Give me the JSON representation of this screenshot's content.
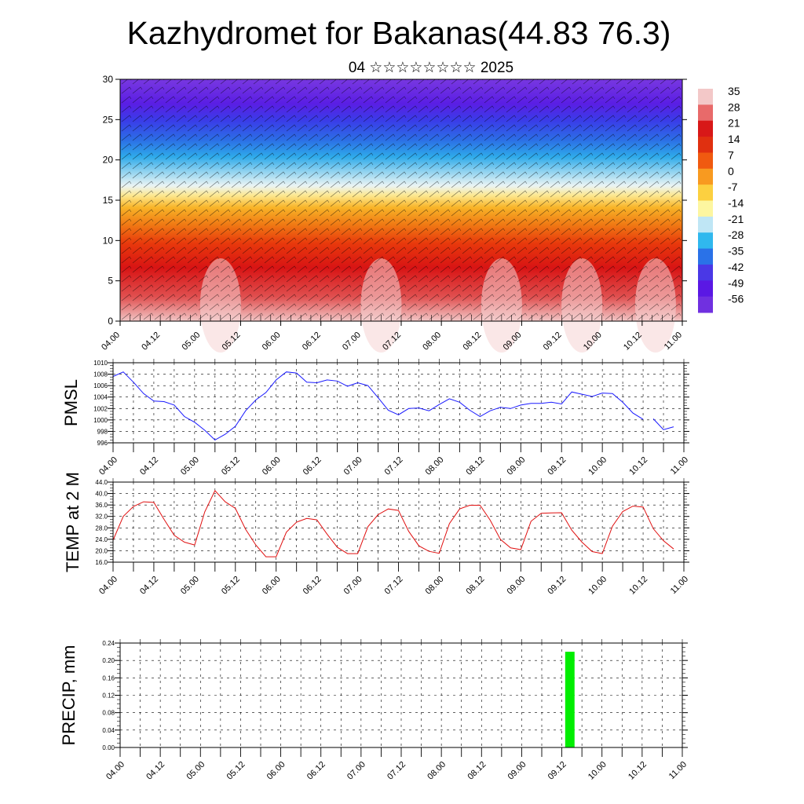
{
  "title": "Kazhydromet for Bakanas(44.83 76.3)",
  "subtitle": "04 ☆☆☆☆☆☆☆☆ 2025",
  "time_labels": [
    "04.00",
    "04.12",
    "05.00",
    "05.12",
    "06.00",
    "06.12",
    "07.00",
    "07.12",
    "08.00",
    "08.12",
    "09.00",
    "09.12",
    "10.00",
    "10.12",
    "11.00"
  ],
  "colors": {
    "pmsl_line": "#1a1aff",
    "temp_line": "#e01010",
    "precip_bar": "#00ee00",
    "grid": "#000000"
  },
  "chart_data": [
    {
      "type": "heatmap",
      "title": "",
      "ylim": [
        0,
        30
      ],
      "yticks": [
        "0",
        "5",
        "10",
        "15",
        "20",
        "25",
        "30"
      ],
      "colorbar": {
        "labels": [
          "35",
          "28",
          "21",
          "14",
          "7",
          "0",
          "-7",
          "-14",
          "-21",
          "-28",
          "-35",
          "-42",
          "-49",
          "-56"
        ],
        "colors": [
          "#f3c8c8",
          "#e86a6a",
          "#d81818",
          "#e03010",
          "#f05a10",
          "#f89a20",
          "#fcd040",
          "#fdf6a0",
          "#bfe6f5",
          "#30b8ee",
          "#2a72e8",
          "#4a38e6",
          "#5a18e4",
          "#7030e0"
        ]
      },
      "x_range": [
        0,
        84
      ],
      "temperature_profile": "warm near surface (~25 to 40), decreasing with height to about -56 near 30",
      "wind_barbs": "overlay"
    },
    {
      "type": "line",
      "ylabel": "PMSL",
      "ylim": [
        996,
        1010
      ],
      "yticks": [
        "996",
        "998",
        "1000",
        "1002",
        "1004",
        "1006",
        "1008",
        "1010"
      ],
      "x_range": [
        0,
        84
      ],
      "series": [
        {
          "x": [
            0,
            1.5,
            3,
            4.5,
            6,
            7.5,
            9,
            10.5,
            12,
            13.5,
            15,
            16.5,
            18,
            19.5,
            21,
            22.5,
            24,
            25.5,
            27,
            28.5,
            30,
            31.5,
            33,
            34.5,
            36,
            37.5,
            39,
            40.5,
            42,
            43.5,
            45,
            46.5,
            48,
            49.5,
            51,
            52.5,
            54,
            55.5,
            57,
            58.5,
            60,
            61.5,
            63,
            64.5,
            66,
            67.5,
            69,
            70.5,
            72,
            73.5,
            75,
            76.5,
            78
          ],
          "values": [
            1007.6,
            1008.4,
            1006.6,
            1004.6,
            1003.3,
            1003.2,
            1002.6,
            1000.6,
            999.6,
            998.2,
            996.5,
            997.5,
            998.9,
            1001.6,
            1003.5,
            1004.8,
            1007.0,
            1008.4,
            1008.2,
            1006.6,
            1006.5,
            1007.0,
            1006.8,
            1005.9,
            1006.5,
            1006.0,
            1003.9,
            1001.7,
            1000.9,
            1002.0,
            1002.1,
            1001.6,
            1002.7,
            1003.7,
            1003.1,
            1001.7,
            1000.6,
            1001.6,
            1002.2,
            1002.0,
            1002.6,
            1002.9,
            1002.9,
            1003.1,
            1002.8,
            1004.9,
            1004.5,
            1004.1,
            1004.7,
            1004.6,
            1003.1,
            1001.2,
            1000.1
          ]
        },
        {
          "x": [
            79.5,
            81,
            82.5
          ],
          "values": [
            1000.2,
            998.3,
            998.8
          ]
        }
      ]
    },
    {
      "type": "line",
      "ylabel": "TEMP at 2 M",
      "ylim": [
        16,
        44
      ],
      "yticks": [
        "16.0",
        "20.0",
        "24.0",
        "28.0",
        "32.0",
        "36.0",
        "40.0",
        "44.0"
      ],
      "x_range": [
        0,
        84
      ],
      "series": [
        {
          "x": [
            0,
            1.5,
            3,
            4.5,
            6,
            7.5,
            9,
            10.5,
            12,
            13.5,
            15,
            16.5,
            18,
            19.5,
            21,
            22.5,
            24,
            25.5,
            27,
            28.5,
            30,
            31.5,
            33,
            34.5,
            36,
            37.5,
            39,
            40.5,
            42,
            43.5,
            45,
            46.5,
            48,
            49.5,
            51,
            52.5,
            54,
            55.5,
            57,
            58.5,
            60,
            61.5,
            63,
            64.5,
            66,
            67.5,
            69,
            70.5,
            72,
            73.5,
            75,
            76.5,
            78,
            79.5,
            81,
            82.5
          ],
          "values": [
            23.7,
            32.0,
            35.5,
            37.1,
            36.9,
            31.0,
            25.4,
            23.0,
            22.0,
            33.6,
            41.0,
            37.1,
            34.8,
            27.5,
            22.0,
            17.9,
            17.9,
            26.5,
            30.0,
            31.3,
            30.8,
            25.8,
            21.2,
            19.0,
            19.0,
            28.4,
            32.6,
            34.6,
            34.1,
            26.8,
            21.7,
            19.8,
            19.1,
            29.5,
            34.6,
            35.9,
            35.9,
            30.7,
            24.0,
            21.0,
            20.4,
            30.3,
            33.1,
            33.2,
            33.3,
            27.2,
            23.0,
            19.7,
            19.0,
            28.6,
            33.7,
            35.6,
            35.3,
            27.7,
            23.5,
            20.6
          ]
        }
      ]
    },
    {
      "type": "bar",
      "ylabel": "PRECIP, mm",
      "ylim": [
        0,
        0.24
      ],
      "yticks": [
        "0.00",
        "0.04",
        "0.08",
        "0.12",
        "0.16",
        "0.20",
        "0.24"
      ],
      "x_range": [
        0,
        84
      ],
      "bars": [
        {
          "x_start": 66.5,
          "x_end": 67.9,
          "value": 0.22
        }
      ]
    }
  ]
}
